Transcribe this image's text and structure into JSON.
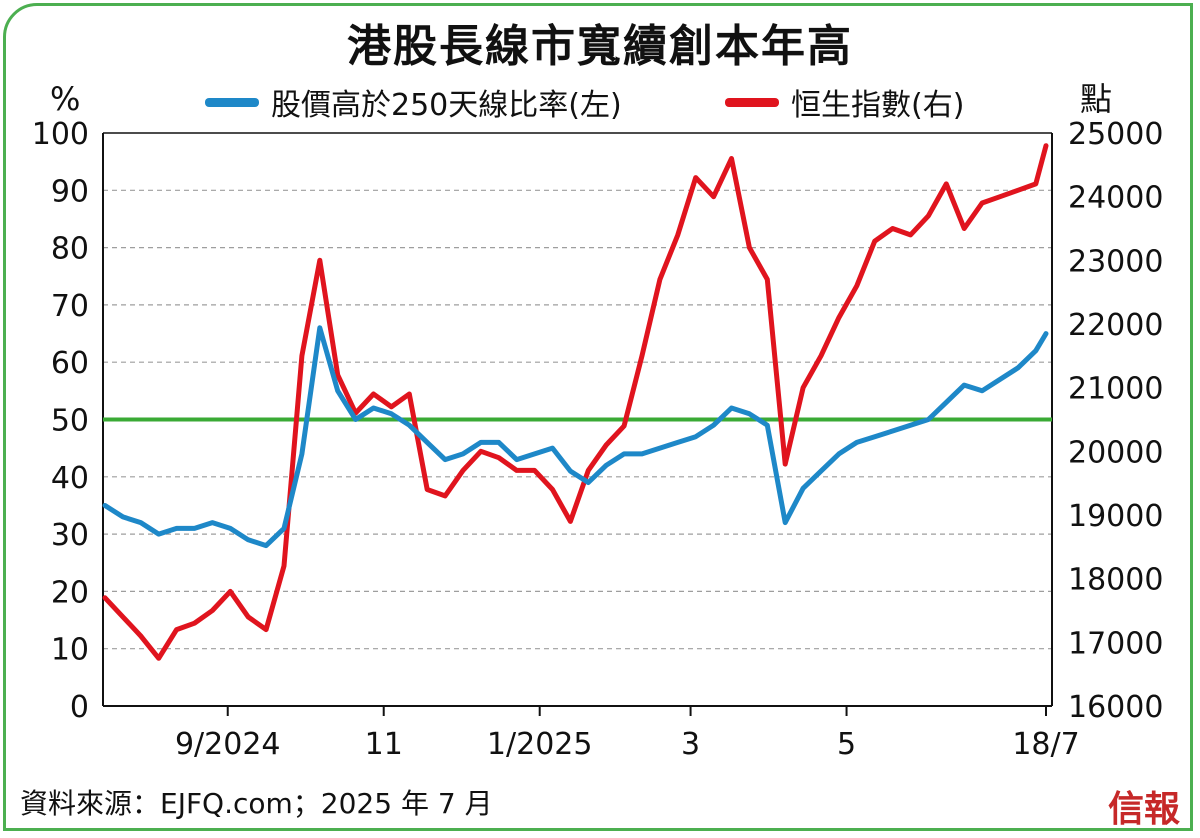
{
  "title": "港股長線市寬續創本年高",
  "left_unit": "%",
  "right_unit": "點",
  "source": "資料來源：EJFQ.com；2025 年 7 月",
  "brand": "信報",
  "colors": {
    "breadth": "#1e88c8",
    "hsi": "#e0141e",
    "threshold": "#3aaa35",
    "frame": "#4caf50",
    "grid": "#9e9e9e"
  },
  "chart_data": {
    "type": "line",
    "title": "港股長線市寬續創本年高",
    "x": [
      "2024-07-15",
      "2024-07-22",
      "2024-07-29",
      "2024-08-05",
      "2024-08-12",
      "2024-08-19",
      "2024-08-26",
      "2024-09-02",
      "2024-09-09",
      "2024-09-16",
      "2024-09-23",
      "2024-09-30",
      "2024-10-07",
      "2024-10-14",
      "2024-10-21",
      "2024-10-28",
      "2024-11-04",
      "2024-11-11",
      "2024-11-18",
      "2024-11-25",
      "2024-12-02",
      "2024-12-09",
      "2024-12-16",
      "2024-12-23",
      "2024-12-30",
      "2025-01-06",
      "2025-01-13",
      "2025-01-20",
      "2025-01-27",
      "2025-02-03",
      "2025-02-10",
      "2025-02-17",
      "2025-02-24",
      "2025-03-03",
      "2025-03-10",
      "2025-03-17",
      "2025-03-24",
      "2025-03-31",
      "2025-04-07",
      "2025-04-14",
      "2025-04-21",
      "2025-04-28",
      "2025-05-05",
      "2025-05-12",
      "2025-05-19",
      "2025-05-26",
      "2025-06-02",
      "2025-06-09",
      "2025-06-16",
      "2025-06-23",
      "2025-06-30",
      "2025-07-07",
      "2025-07-14",
      "2025-07-18"
    ],
    "x_ticks": [
      "9/2024",
      "11",
      "1/2025",
      "3",
      "5",
      "18/7"
    ],
    "series": [
      {
        "name": "股價高於250天線比率(左)",
        "axis": "left",
        "color": "#1e88c8",
        "values": [
          35,
          33,
          32,
          30,
          31,
          31,
          32,
          31,
          29,
          28,
          31,
          44,
          66,
          55,
          50,
          52,
          51,
          49,
          46,
          43,
          44,
          46,
          46,
          43,
          44,
          45,
          41,
          39,
          42,
          44,
          44,
          45,
          46,
          47,
          49,
          52,
          51,
          49,
          32,
          38,
          41,
          44,
          46,
          47,
          48,
          49,
          50,
          53,
          56,
          55,
          57,
          59,
          62,
          65
        ]
      },
      {
        "name": "恒生指數(右)",
        "axis": "right",
        "color": "#e0141e",
        "values": [
          17700,
          17400,
          17100,
          16750,
          17200,
          17300,
          17500,
          17800,
          17400,
          17200,
          18200,
          21500,
          23000,
          21200,
          20600,
          20900,
          20700,
          20900,
          19400,
          19300,
          19700,
          20000,
          19900,
          19700,
          19700,
          19400,
          18900,
          19700,
          20100,
          20400,
          21500,
          22700,
          23400,
          24300,
          24000,
          24600,
          23200,
          22700,
          19800,
          21000,
          21500,
          22100,
          22600,
          23300,
          23500,
          23400,
          23700,
          24200,
          23500,
          23900,
          24000,
          24100,
          24200,
          24800
        ]
      }
    ],
    "reference_line": {
      "axis": "left",
      "value": 50
    },
    "ylim_left": [
      0,
      100
    ],
    "yticks_left": [
      0,
      10,
      20,
      30,
      40,
      50,
      60,
      70,
      80,
      90,
      100
    ],
    "ylim_right": [
      16000,
      25000
    ],
    "yticks_right": [
      16000,
      17000,
      18000,
      19000,
      20000,
      21000,
      22000,
      23000,
      24000,
      25000
    ],
    "grid": "horizontal dashed",
    "legend_position": "top"
  }
}
